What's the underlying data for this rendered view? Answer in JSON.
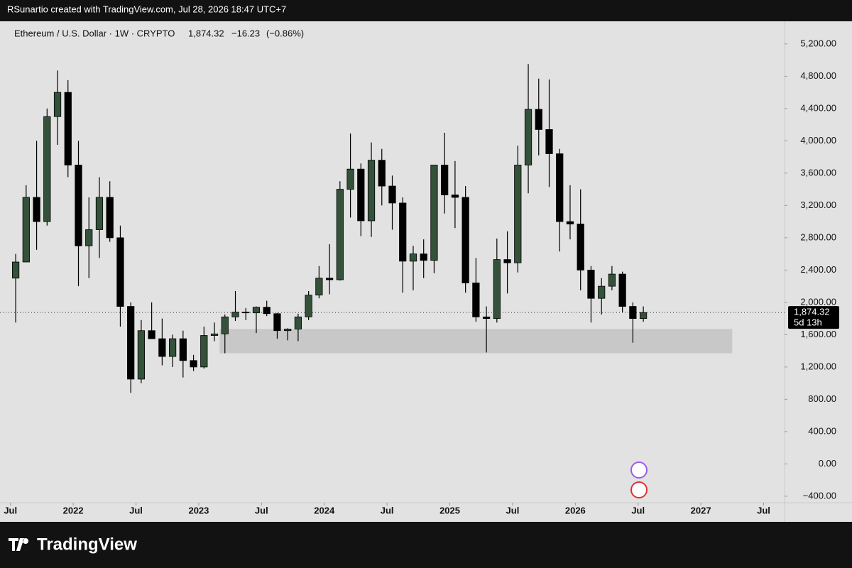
{
  "attribution": "RSunartio created with TradingView.com, Jul 28, 2026 18:47 UTC+7",
  "brand": "TradingView",
  "chart_data": {
    "type": "candlestick",
    "title": "Ethereum / U.S. Dollar · 1W · CRYPTO",
    "last_price": {
      "value": 1874.32,
      "label": "1,874.32"
    },
    "change": {
      "value": -16.23,
      "label": "−16.23"
    },
    "change_pct": {
      "value": -0.86,
      "label": "(−0.86%)"
    },
    "countdown": "5d 13h",
    "up_color": "#34513a",
    "down_color": "#000000",
    "x": [
      "2021-07",
      "2021-08",
      "2021-09",
      "2021-10",
      "2021-11",
      "2021-12",
      "2022-01",
      "2022-02",
      "2022-03",
      "2022-04",
      "2022-05",
      "2022-06",
      "2022-07",
      "2022-08",
      "2022-09",
      "2022-10",
      "2022-11",
      "2022-12",
      "2023-01",
      "2023-02",
      "2023-03",
      "2023-04",
      "2023-05",
      "2023-06",
      "2023-07",
      "2023-08",
      "2023-09",
      "2023-10",
      "2023-11",
      "2023-12",
      "2024-01",
      "2024-02",
      "2024-03",
      "2024-04",
      "2024-05",
      "2024-06",
      "2024-07",
      "2024-08",
      "2024-09",
      "2024-10",
      "2024-11",
      "2024-12",
      "2025-01",
      "2025-02",
      "2025-03",
      "2025-04",
      "2025-05",
      "2025-06",
      "2025-07",
      "2025-08",
      "2025-09",
      "2025-10",
      "2025-11",
      "2025-12",
      "2026-01",
      "2026-02",
      "2026-03",
      "2026-04",
      "2026-05",
      "2026-06",
      "2026-07"
    ],
    "open": [
      2300,
      2500,
      3300,
      3000,
      4300,
      4600,
      3700,
      2700,
      2900,
      3300,
      2800,
      1950,
      1050,
      1650,
      1550,
      1330,
      1550,
      1280,
      1200,
      1590,
      1610,
      1820,
      1880,
      1870,
      1940,
      1860,
      1650,
      1670,
      1820,
      2090,
      2300,
      2280,
      3400,
      3650,
      3010,
      3760,
      3440,
      3230,
      2510,
      2600,
      2520,
      3700,
      3330,
      3300,
      2240,
      1820,
      1800,
      2530,
      2490,
      3700,
      4390,
      4140,
      3840,
      3000,
      2970,
      2400,
      2050,
      2200,
      2350,
      1950,
      1800
    ],
    "high": [
      2600,
      3450,
      4000,
      4400,
      4870,
      4750,
      4000,
      3300,
      3550,
      3500,
      2950,
      2000,
      1780,
      2000,
      1800,
      1600,
      1650,
      1350,
      1700,
      1750,
      1850,
      2140,
      1930,
      1950,
      2020,
      1870,
      1680,
      1860,
      2140,
      2450,
      2720,
      3500,
      4090,
      3720,
      3980,
      3900,
      3570,
      3300,
      2700,
      2780,
      3700,
      4100,
      3750,
      3440,
      2550,
      1950,
      2790,
      2880,
      3940,
      4950,
      4770,
      4760,
      3900,
      3450,
      3400,
      2450,
      2300,
      2450,
      2380,
      2000,
      1950
    ],
    "low": [
      1750,
      2500,
      2650,
      2950,
      3950,
      3550,
      2200,
      2300,
      2550,
      2750,
      1700,
      880,
      1000,
      1550,
      1220,
      1200,
      1070,
      1150,
      1180,
      1520,
      1370,
      1770,
      1780,
      1620,
      1830,
      1550,
      1530,
      1520,
      1780,
      2050,
      2100,
      2270,
      3050,
      2820,
      2810,
      3200,
      2900,
      2120,
      2150,
      2300,
      2360,
      3100,
      2920,
      2120,
      1760,
      1380,
      1750,
      2110,
      2370,
      3350,
      3820,
      3430,
      2630,
      2780,
      2150,
      1750,
      1850,
      2150,
      1880,
      1500,
      1760
    ],
    "close": [
      2500,
      3300,
      3000,
      4300,
      4600,
      3700,
      2700,
      2900,
      3300,
      2800,
      1950,
      1050,
      1650,
      1550,
      1330,
      1550,
      1280,
      1200,
      1590,
      1610,
      1820,
      1880,
      1870,
      1940,
      1860,
      1650,
      1670,
      1820,
      2090,
      2300,
      2280,
      3400,
      3650,
      3010,
      3760,
      3440,
      3230,
      2510,
      2600,
      2520,
      3700,
      3330,
      3300,
      2240,
      1820,
      1800,
      2530,
      2490,
      3700,
      4390,
      4140,
      3840,
      3000,
      2970,
      2400,
      2050,
      2200,
      2350,
      1950,
      1800,
      1874.32
    ],
    "zone": {
      "x": [
        "2023-03",
        "2027-04"
      ],
      "y": [
        1370,
        1670
      ],
      "color": "#c8c8c8"
    },
    "xlim": [
      "2021-06",
      "2027-09"
    ],
    "xticks": [
      {
        "value": "2021-07",
        "label": "Jul"
      },
      {
        "value": "2022-01",
        "label": "2022"
      },
      {
        "value": "2022-07",
        "label": "Jul"
      },
      {
        "value": "2023-01",
        "label": "2023"
      },
      {
        "value": "2023-07",
        "label": "Jul"
      },
      {
        "value": "2024-01",
        "label": "2024"
      },
      {
        "value": "2024-07",
        "label": "Jul"
      },
      {
        "value": "2025-01",
        "label": "2025"
      },
      {
        "value": "2025-07",
        "label": "Jul"
      },
      {
        "value": "2026-01",
        "label": "2026"
      },
      {
        "value": "2026-07",
        "label": "Jul"
      },
      {
        "value": "2027-01",
        "label": "2027"
      },
      {
        "value": "2027-07",
        "label": "Jul"
      }
    ],
    "ylim": [
      -480,
      5480
    ],
    "yticks": [
      {
        "value": 5200,
        "label": "5,200.00"
      },
      {
        "value": 4800,
        "label": "4,800.00"
      },
      {
        "value": 4400,
        "label": "4,400.00"
      },
      {
        "value": 4000,
        "label": "4,000.00"
      },
      {
        "value": 3600,
        "label": "3,600.00"
      },
      {
        "value": 3200,
        "label": "3,200.00"
      },
      {
        "value": 2800,
        "label": "2,800.00"
      },
      {
        "value": 2400,
        "label": "2,400.00"
      },
      {
        "value": 2000,
        "label": "2,000.00"
      },
      {
        "value": 1600,
        "label": "1,600.00"
      },
      {
        "value": 1200,
        "label": "1,200.00"
      },
      {
        "value": 800,
        "label": "800.00"
      },
      {
        "value": 400,
        "label": "400.00"
      },
      {
        "value": 0,
        "label": "0.00"
      },
      {
        "value": -400,
        "label": "−400.00"
      }
    ]
  }
}
